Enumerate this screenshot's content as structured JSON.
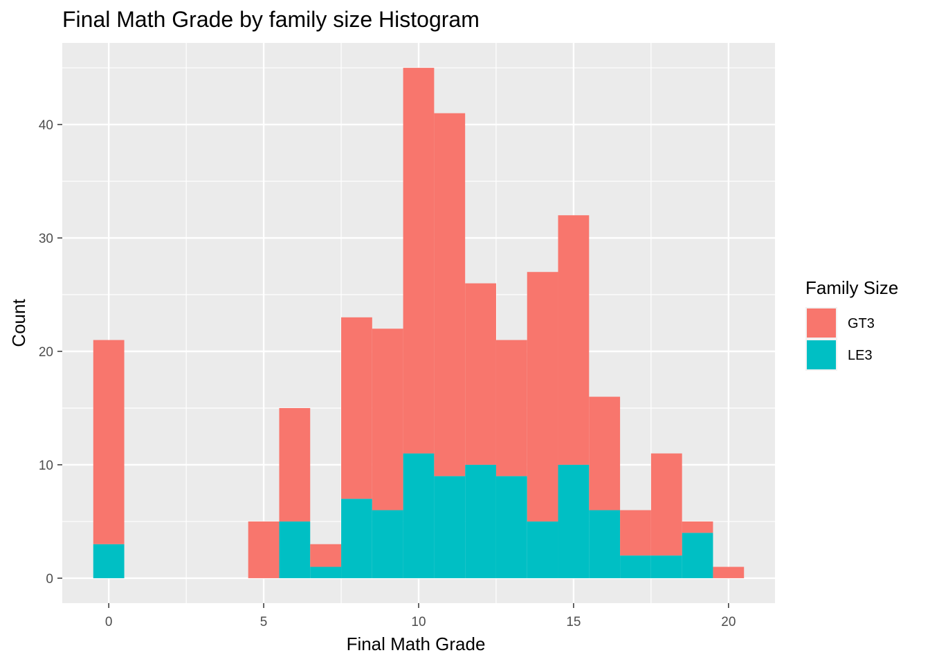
{
  "chart_data": {
    "type": "bar",
    "stacked": true,
    "title": "Final Math Grade by family size Histogram",
    "xlabel": "Final Math Grade",
    "ylabel": "Count",
    "x": [
      0,
      1,
      2,
      3,
      4,
      5,
      6,
      7,
      8,
      9,
      10,
      11,
      12,
      13,
      14,
      15,
      16,
      17,
      18,
      19,
      20
    ],
    "xlim": [
      -1.5,
      21.5
    ],
    "ylim": [
      -2.2,
      47.2
    ],
    "xticks": [
      "0",
      "5",
      "10",
      "15",
      "20"
    ],
    "yticks": [
      "0",
      "10",
      "20",
      "30",
      "40"
    ],
    "grid": true,
    "legend": {
      "title": "Family Size",
      "position": "right"
    },
    "series": [
      {
        "name": "LE3",
        "color": "#00BFC4",
        "values": [
          3,
          0,
          0,
          0,
          0,
          0,
          5,
          1,
          7,
          6,
          11,
          9,
          10,
          9,
          5,
          10,
          6,
          2,
          2,
          4,
          0
        ]
      },
      {
        "name": "GT3",
        "color": "#F8766D",
        "values": [
          18,
          0,
          0,
          0,
          0,
          5,
          10,
          2,
          16,
          16,
          34,
          32,
          16,
          12,
          22,
          22,
          10,
          4,
          9,
          1,
          1
        ]
      }
    ]
  }
}
